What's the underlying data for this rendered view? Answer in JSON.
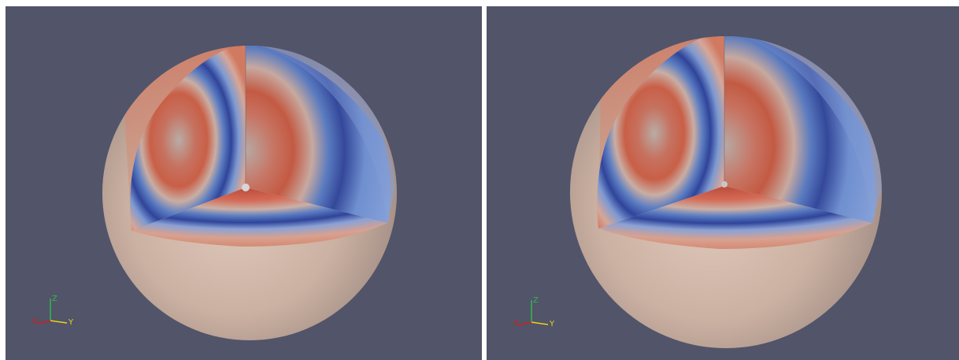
{
  "colors": {
    "background": "#525469",
    "separator": "#ffffff",
    "warm_dark": "#b5362c",
    "warm_mid": "#d9735e",
    "neutral": "#c7b4a8",
    "cool_mid": "#7f9ad6",
    "cool_dark": "#3b52a8",
    "axis_x": "#d01f1f",
    "axis_y": "#e6d51a",
    "axis_z": "#2fb84a"
  },
  "views": [
    {
      "name": "left-render",
      "axes": {
        "x_label": "X",
        "y_label": "Y",
        "z_label": "Z"
      }
    },
    {
      "name": "right-render",
      "axes": {
        "x_label": "X",
        "y_label": "Y",
        "z_label": "Z"
      }
    }
  ]
}
